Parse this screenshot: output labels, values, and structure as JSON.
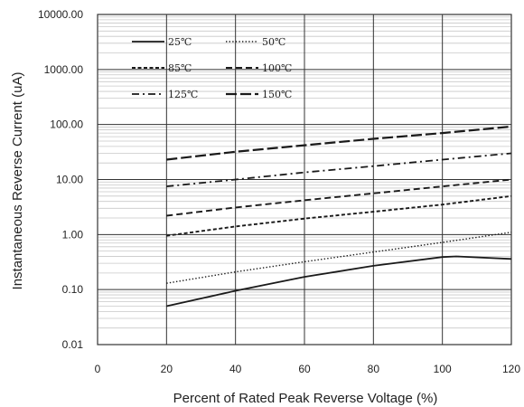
{
  "chart_data": {
    "type": "line",
    "title": "",
    "xlabel": "Percent of  Rated Peak Reverse Voltage (%)",
    "ylabel": "Instantaneous Reverse Current (uA)",
    "xlim": [
      0,
      120
    ],
    "ylim": [
      0.01,
      10000
    ],
    "yscale": "log",
    "grid": true,
    "legend_position": "top-left",
    "x_ticks": [
      "0",
      "20",
      "40",
      "60",
      "80",
      "100",
      "120"
    ],
    "y_ticks": [
      "0.01",
      "0.10",
      "1.00",
      "10.00",
      "100.00",
      "1000.00",
      "10000.00"
    ],
    "series": [
      {
        "name": "25℃",
        "style": "solid",
        "x": [
          20,
          40,
          60,
          80,
          100,
          104,
          120
        ],
        "y": [
          0.05,
          0.095,
          0.17,
          0.27,
          0.39,
          0.4,
          0.36
        ]
      },
      {
        "name": "50℃",
        "style": "dotted",
        "x": [
          20,
          40,
          60,
          80,
          100,
          120
        ],
        "y": [
          0.13,
          0.21,
          0.32,
          0.48,
          0.72,
          1.1
        ]
      },
      {
        "name": "85℃",
        "style": "dashed",
        "x": [
          20,
          40,
          60,
          80,
          100,
          120
        ],
        "y": [
          0.95,
          1.4,
          1.95,
          2.6,
          3.5,
          5.0
        ]
      },
      {
        "name": "100℃",
        "style": "longdash",
        "x": [
          20,
          40,
          60,
          80,
          100,
          120
        ],
        "y": [
          2.2,
          3.1,
          4.2,
          5.6,
          7.5,
          10.0
        ]
      },
      {
        "name": "125℃",
        "style": "dashdot",
        "x": [
          20,
          40,
          60,
          80,
          100,
          120
        ],
        "y": [
          7.5,
          10.0,
          13.5,
          17.5,
          23.0,
          30.0
        ]
      },
      {
        "name": "150℃",
        "style": "xlongdash",
        "x": [
          20,
          40,
          60,
          80,
          100,
          120
        ],
        "y": [
          23.0,
          32.0,
          42.0,
          55.0,
          70.0,
          92.0
        ]
      }
    ]
  },
  "colors": {
    "line": "#1a1a1a",
    "major_grid": "#333333",
    "minor_grid": "#c8c8c8",
    "background": "#ffffff"
  }
}
